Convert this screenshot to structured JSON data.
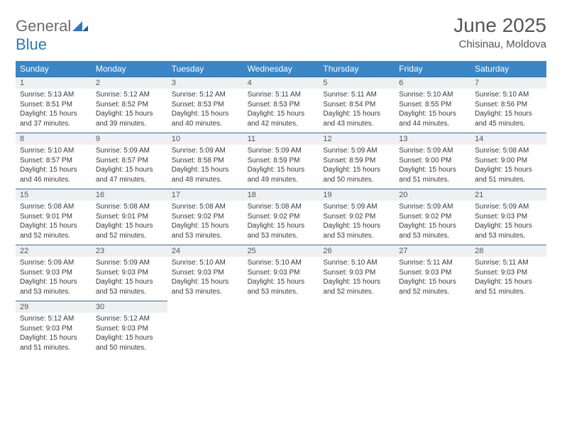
{
  "logo": {
    "word1": "General",
    "word2": "Blue"
  },
  "title": "June 2025",
  "location": "Chisinau, Moldova",
  "header_bg": "#3b86c6",
  "weekdays": [
    "Sunday",
    "Monday",
    "Tuesday",
    "Wednesday",
    "Thursday",
    "Friday",
    "Saturday"
  ],
  "cells": [
    {
      "n": "1",
      "sr": "5:13 AM",
      "ss": "8:51 PM",
      "dl": "15 hours and 37 minutes."
    },
    {
      "n": "2",
      "sr": "5:12 AM",
      "ss": "8:52 PM",
      "dl": "15 hours and 39 minutes."
    },
    {
      "n": "3",
      "sr": "5:12 AM",
      "ss": "8:53 PM",
      "dl": "15 hours and 40 minutes."
    },
    {
      "n": "4",
      "sr": "5:11 AM",
      "ss": "8:53 PM",
      "dl": "15 hours and 42 minutes."
    },
    {
      "n": "5",
      "sr": "5:11 AM",
      "ss": "8:54 PM",
      "dl": "15 hours and 43 minutes."
    },
    {
      "n": "6",
      "sr": "5:10 AM",
      "ss": "8:55 PM",
      "dl": "15 hours and 44 minutes."
    },
    {
      "n": "7",
      "sr": "5:10 AM",
      "ss": "8:56 PM",
      "dl": "15 hours and 45 minutes."
    },
    {
      "n": "8",
      "sr": "5:10 AM",
      "ss": "8:57 PM",
      "dl": "15 hours and 46 minutes."
    },
    {
      "n": "9",
      "sr": "5:09 AM",
      "ss": "8:57 PM",
      "dl": "15 hours and 47 minutes."
    },
    {
      "n": "10",
      "sr": "5:09 AM",
      "ss": "8:58 PM",
      "dl": "15 hours and 48 minutes."
    },
    {
      "n": "11",
      "sr": "5:09 AM",
      "ss": "8:59 PM",
      "dl": "15 hours and 49 minutes."
    },
    {
      "n": "12",
      "sr": "5:09 AM",
      "ss": "8:59 PM",
      "dl": "15 hours and 50 minutes."
    },
    {
      "n": "13",
      "sr": "5:09 AM",
      "ss": "9:00 PM",
      "dl": "15 hours and 51 minutes."
    },
    {
      "n": "14",
      "sr": "5:08 AM",
      "ss": "9:00 PM",
      "dl": "15 hours and 51 minutes."
    },
    {
      "n": "15",
      "sr": "5:08 AM",
      "ss": "9:01 PM",
      "dl": "15 hours and 52 minutes."
    },
    {
      "n": "16",
      "sr": "5:08 AM",
      "ss": "9:01 PM",
      "dl": "15 hours and 52 minutes."
    },
    {
      "n": "17",
      "sr": "5:08 AM",
      "ss": "9:02 PM",
      "dl": "15 hours and 53 minutes."
    },
    {
      "n": "18",
      "sr": "5:08 AM",
      "ss": "9:02 PM",
      "dl": "15 hours and 53 minutes."
    },
    {
      "n": "19",
      "sr": "5:09 AM",
      "ss": "9:02 PM",
      "dl": "15 hours and 53 minutes."
    },
    {
      "n": "20",
      "sr": "5:09 AM",
      "ss": "9:02 PM",
      "dl": "15 hours and 53 minutes."
    },
    {
      "n": "21",
      "sr": "5:09 AM",
      "ss": "9:03 PM",
      "dl": "15 hours and 53 minutes."
    },
    {
      "n": "22",
      "sr": "5:09 AM",
      "ss": "9:03 PM",
      "dl": "15 hours and 53 minutes."
    },
    {
      "n": "23",
      "sr": "5:09 AM",
      "ss": "9:03 PM",
      "dl": "15 hours and 53 minutes."
    },
    {
      "n": "24",
      "sr": "5:10 AM",
      "ss": "9:03 PM",
      "dl": "15 hours and 53 minutes."
    },
    {
      "n": "25",
      "sr": "5:10 AM",
      "ss": "9:03 PM",
      "dl": "15 hours and 53 minutes."
    },
    {
      "n": "26",
      "sr": "5:10 AM",
      "ss": "9:03 PM",
      "dl": "15 hours and 52 minutes."
    },
    {
      "n": "27",
      "sr": "5:11 AM",
      "ss": "9:03 PM",
      "dl": "15 hours and 52 minutes."
    },
    {
      "n": "28",
      "sr": "5:11 AM",
      "ss": "9:03 PM",
      "dl": "15 hours and 51 minutes."
    },
    {
      "n": "29",
      "sr": "5:12 AM",
      "ss": "9:03 PM",
      "dl": "15 hours and 51 minutes."
    },
    {
      "n": "30",
      "sr": "5:12 AM",
      "ss": "9:03 PM",
      "dl": "15 hours and 50 minutes."
    }
  ],
  "labels": {
    "sunrise": "Sunrise:",
    "sunset": "Sunset:",
    "daylight": "Daylight:"
  }
}
